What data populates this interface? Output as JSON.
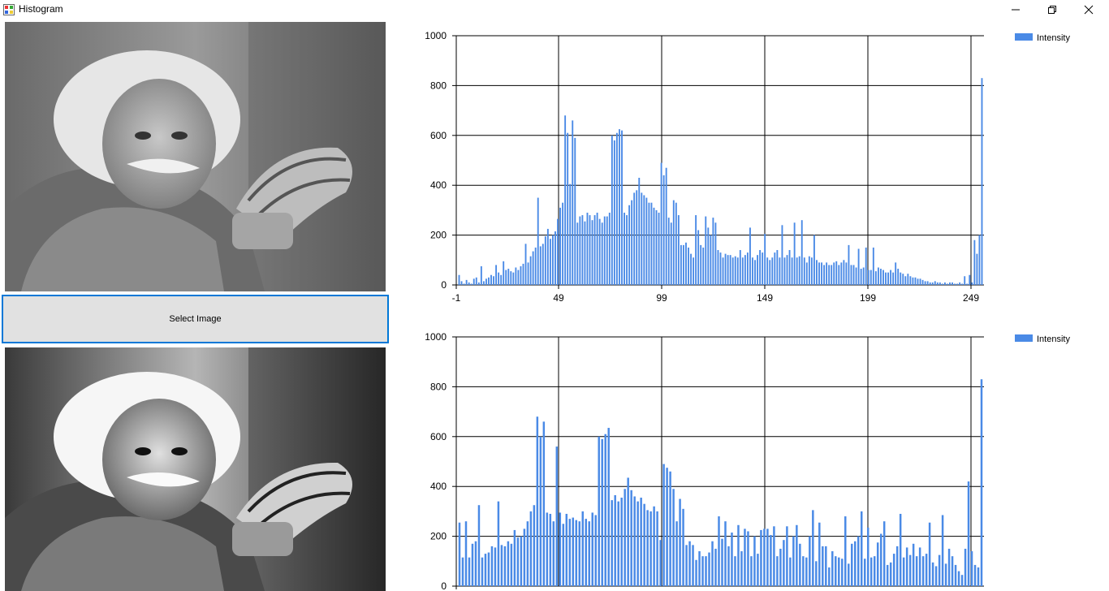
{
  "window": {
    "title": "Histogram",
    "minimize_icon": "minimize-icon",
    "maximize_icon": "restore-icon",
    "close_icon": "close-icon"
  },
  "photos": {
    "original_alt": "Original grayscale portrait",
    "equalized_alt": "Equalized grayscale portrait"
  },
  "select_button": {
    "label": "Select Image"
  },
  "colors": {
    "bar": "#4a8ae6",
    "grid": "#000000",
    "button_border": "#0078d7",
    "button_bg": "#e1e1e1"
  },
  "charts": [
    {
      "chart_data": {
        "type": "bar",
        "legend": "Intensity",
        "legend_position": "top-right",
        "ylim": [
          0,
          1000
        ],
        "yticks": [
          0,
          200,
          400,
          600,
          800,
          1000
        ],
        "xlim": [
          -1,
          256
        ],
        "xticks": [
          -1,
          49,
          99,
          149,
          199,
          249
        ],
        "grid": true,
        "values": [
          40,
          15,
          5,
          20,
          10,
          5,
          25,
          30,
          10,
          75,
          15,
          25,
          30,
          40,
          35,
          80,
          50,
          40,
          95,
          60,
          65,
          55,
          50,
          70,
          60,
          75,
          85,
          165,
          90,
          115,
          135,
          150,
          350,
          155,
          165,
          195,
          225,
          185,
          200,
          215,
          265,
          310,
          330,
          680,
          610,
          405,
          660,
          590,
          250,
          275,
          280,
          255,
          290,
          280,
          260,
          280,
          290,
          265,
          250,
          275,
          275,
          290,
          600,
          580,
          610,
          625,
          620,
          290,
          280,
          320,
          340,
          370,
          380,
          430,
          370,
          360,
          350,
          330,
          330,
          310,
          300,
          290,
          490,
          440,
          470,
          270,
          250,
          340,
          330,
          280,
          160,
          160,
          170,
          150,
          125,
          110,
          280,
          220,
          160,
          150,
          275,
          230,
          200,
          270,
          250,
          140,
          130,
          110,
          125,
          120,
          120,
          110,
          115,
          110,
          140,
          110,
          120,
          130,
          230,
          110,
          100,
          120,
          140,
          130,
          205,
          110,
          100,
          110,
          130,
          140,
          110,
          240,
          110,
          120,
          140,
          110,
          250,
          110,
          115,
          260,
          110,
          90,
          115,
          110,
          200,
          100,
          90,
          90,
          80,
          90,
          80,
          80,
          90,
          95,
          80,
          90,
          100,
          90,
          160,
          80,
          80,
          70,
          145,
          65,
          70,
          150,
          60,
          60,
          150,
          55,
          70,
          65,
          60,
          50,
          50,
          60,
          50,
          90,
          65,
          50,
          45,
          35,
          45,
          35,
          30,
          30,
          25,
          25,
          20,
          15,
          15,
          10,
          10,
          15,
          10,
          10,
          5,
          10,
          5,
          10,
          10,
          5,
          5,
          10,
          5,
          35,
          5,
          40,
          10,
          180,
          125,
          200,
          830
        ]
      }
    },
    {
      "chart_data": {
        "type": "bar",
        "legend": "Intensity",
        "legend_position": "top-right",
        "ylim": [
          0,
          1000
        ],
        "yticks": [
          0,
          200,
          400,
          600,
          800,
          1000
        ],
        "grid": true,
        "values": [
          255,
          115,
          260,
          115,
          170,
          180,
          325,
          115,
          130,
          135,
          160,
          155,
          340,
          165,
          160,
          180,
          170,
          225,
          195,
          200,
          230,
          260,
          300,
          325,
          680,
          600,
          660,
          295,
          290,
          260,
          560,
          295,
          250,
          290,
          270,
          275,
          265,
          260,
          300,
          270,
          260,
          295,
          285,
          600,
          590,
          610,
          635,
          345,
          365,
          340,
          355,
          390,
          435,
          385,
          360,
          340,
          355,
          330,
          305,
          300,
          320,
          300,
          185,
          490,
          475,
          460,
          390,
          260,
          350,
          310,
          165,
          180,
          165,
          105,
          140,
          120,
          120,
          135,
          180,
          150,
          280,
          190,
          260,
          160,
          215,
          120,
          245,
          140,
          230,
          220,
          120,
          200,
          130,
          225,
          230,
          230,
          205,
          240,
          120,
          150,
          185,
          240,
          115,
          200,
          245,
          170,
          120,
          115,
          200,
          305,
          100,
          255,
          160,
          160,
          75,
          140,
          120,
          115,
          110,
          280,
          90,
          170,
          180,
          200,
          300,
          110,
          235,
          115,
          120,
          175,
          210,
          260,
          85,
          95,
          130,
          160,
          290,
          115,
          155,
          125,
          170,
          120,
          155,
          120,
          130,
          255,
          95,
          80,
          125,
          285,
          90,
          150,
          120,
          85,
          60,
          45,
          150,
          420,
          140,
          85,
          75,
          830
        ]
      }
    }
  ]
}
